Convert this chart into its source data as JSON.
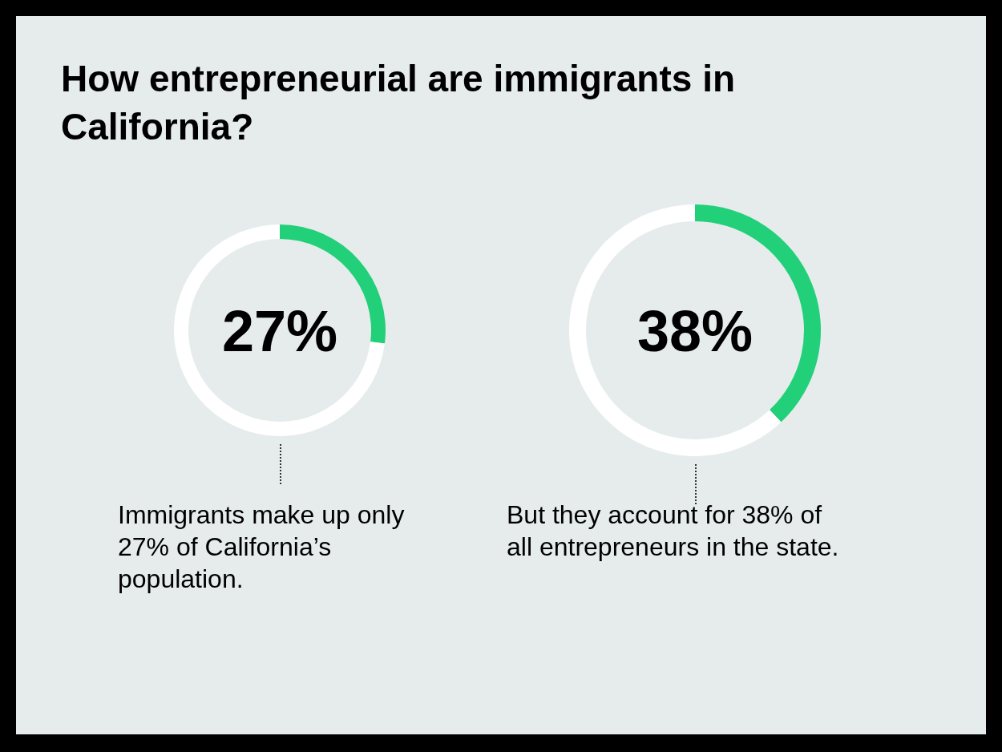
{
  "chart_data": [
    {
      "type": "donut",
      "title": "How entrepreneurial are immigrants in California?",
      "categories": [
        null,
        null
      ],
      "values": [
        27,
        73
      ],
      "colors": [
        "#22d07a",
        "#ffffff"
      ],
      "annotations": [
        "27%",
        "Immigrants make up only 27% of California’s population."
      ]
    },
    {
      "type": "donut",
      "categories": [
        null,
        null
      ],
      "values": [
        38,
        62
      ],
      "colors": [
        "#22d07a",
        "#ffffff"
      ],
      "annotations": [
        "38%",
        "But they account for 38% of all entrepreneurs in the state."
      ]
    }
  ]
}
